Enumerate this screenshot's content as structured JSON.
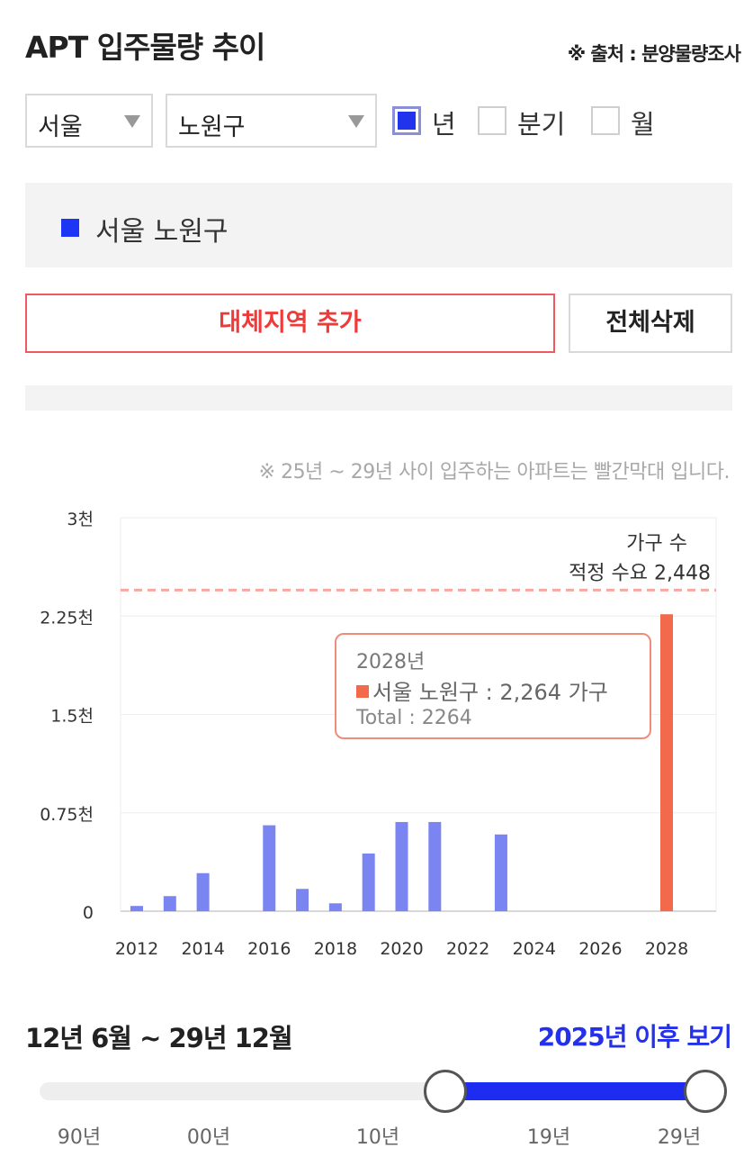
{
  "header": {
    "title": "APT 입주물량 추이",
    "source": "※ 출처 : 분양물량조사"
  },
  "filters": {
    "city": "서울",
    "district": "노원구",
    "periods": [
      {
        "label": "년",
        "checked": true
      },
      {
        "label": "분기",
        "checked": false
      },
      {
        "label": "월",
        "checked": false
      }
    ]
  },
  "legend": {
    "label": "서울 노원구",
    "color": "#1d35f5"
  },
  "buttons": {
    "add_region": "대체지역 추가",
    "delete_all": "전체삭제"
  },
  "note": "※ 25년 ~ 29년 사이 입주하는 아파트는 빨간막대 입니다.",
  "colors": {
    "past_bar": "#7b85f2",
    "future_bar": "#f26a4b",
    "demand_line": "#f5a9a1",
    "slider_fill": "#1d2cf0"
  },
  "chart_data": {
    "type": "bar",
    "x": [
      2012,
      2013,
      2014,
      2015,
      2016,
      2017,
      2018,
      2019,
      2020,
      2021,
      2022,
      2023,
      2024,
      2025,
      2026,
      2027,
      2028
    ],
    "series": [
      {
        "name": "서울 노원구",
        "values": [
          40,
          115,
          290,
          0,
          655,
          170,
          60,
          440,
          680,
          680,
          0,
          585,
          0,
          0,
          0,
          0,
          2264
        ]
      }
    ],
    "highlight_from": 2025,
    "x_tick_labels": [
      "2012",
      "2014",
      "2016",
      "2018",
      "2020",
      "2022",
      "2024",
      "2026",
      "2028"
    ],
    "y_ticks": [
      0,
      750,
      1500,
      2250,
      3000
    ],
    "y_tick_labels": [
      "0",
      "0.75천",
      "1.5천",
      "2.25천",
      "3천"
    ],
    "ylim": [
      0,
      3000
    ],
    "reference_line": {
      "value": 2448,
      "label_line1": "가구 수",
      "label_line2": "적정 수요 2,448"
    },
    "grid": true
  },
  "tooltip": {
    "year": "2028년",
    "line": "서울 노원구 : 2,264 가구",
    "total": "Total : 2264"
  },
  "range": {
    "text": "12년 6월 ~ 29년 12월",
    "after_link": "2025년 이후 보기",
    "tick_labels": [
      "90년",
      "00년",
      "10년",
      "19년",
      "29년"
    ],
    "selected_start_fraction": 0.61,
    "selected_end_fraction": 1.0
  }
}
